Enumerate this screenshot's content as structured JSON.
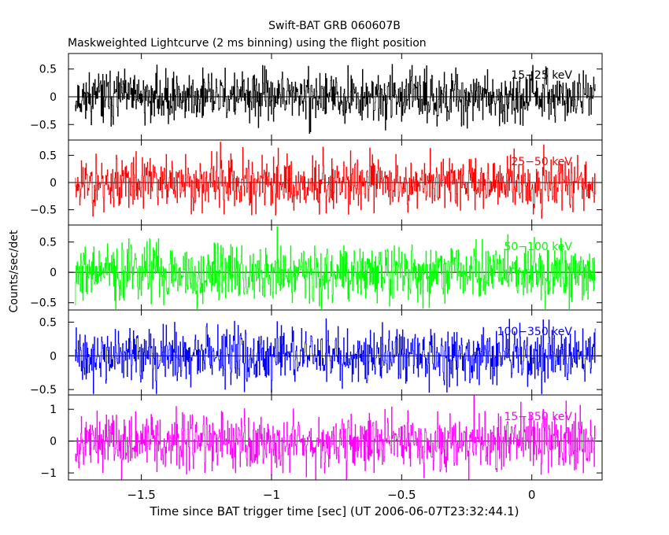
{
  "chart_data": {
    "type": "line",
    "title": "Swift-BAT GRB 060607B",
    "subtitle": "Maskweighted Lightcurve (2 ms binning) using the flight position",
    "xlabel": "Time since BAT trigger time [sec] (UT 2006-06-07T23:32:44.1)",
    "ylabel": "Counts/sec/det",
    "xlim": [
      -1.78,
      0.27
    ],
    "x_start": -1.755,
    "x_end": 0.245,
    "bin_seconds": 0.002,
    "xticks": [
      -1.5,
      -1,
      -0.5,
      0
    ],
    "xtick_labels": [
      "−1.5",
      "−1",
      "−0.5",
      "0"
    ],
    "panels": [
      {
        "band": "15−25 keV",
        "color": "#000000",
        "ylim": [
          -0.78,
          0.78
        ],
        "yticks": [
          0.5,
          0,
          -0.5
        ],
        "ytick_labels": [
          "0.5",
          "0",
          "−0.5"
        ],
        "noise_sigma": 0.22,
        "seed": 11
      },
      {
        "band": "25−50 keV",
        "color": "#ff0000",
        "ylim": [
          -0.78,
          0.78
        ],
        "yticks": [
          0.5,
          0,
          -0.5
        ],
        "ytick_labels": [
          "0.5",
          "0",
          "−0.5"
        ],
        "noise_sigma": 0.25,
        "seed": 23
      },
      {
        "band": "50−100 keV",
        "color": "#00ff00",
        "ylim": [
          -0.62,
          0.78
        ],
        "yticks": [
          0.5,
          0,
          -0.5
        ],
        "ytick_labels": [
          "0.5",
          "0",
          "−0.5"
        ],
        "noise_sigma": 0.24,
        "seed": 37
      },
      {
        "band": "100−350 keV",
        "color": "#0000ff",
        "ylim": [
          -0.58,
          0.68
        ],
        "yticks": [
          0.5,
          0,
          -0.5
        ],
        "ytick_labels": [
          "0.5",
          "0",
          "−0.5"
        ],
        "noise_sigma": 0.2,
        "seed": 41
      },
      {
        "band": "15−350 keV",
        "color": "#ff00ff",
        "ylim": [
          -1.22,
          1.45
        ],
        "yticks": [
          1,
          0,
          -1
        ],
        "ytick_labels": [
          "1",
          "0",
          "−1"
        ],
        "noise_sigma": 0.45,
        "seed": 53
      }
    ]
  }
}
